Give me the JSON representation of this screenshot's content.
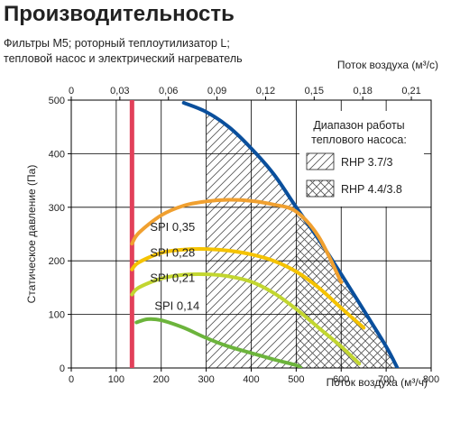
{
  "title": "Производительность",
  "subtitle_lines": [
    "Фильтры М5; роторный теплоутилизатор L;",
    "тепловой насос и электрический нагреватель"
  ],
  "colors": {
    "max_curve": "#0a4f9c",
    "limit_line": "#e2405a",
    "spi_035": "#f0a030",
    "spi_028": "#f5c300",
    "spi_021": "#c2d630",
    "spi_014": "#6cb43c",
    "grid": "#000000",
    "hatch": "#555555"
  },
  "chart_data": {
    "type": "line",
    "xlabel": "Поток воздуха (м³/ч)",
    "x2label": "Поток воздуха (м³/с)",
    "ylabel": "Статическое давление (Па)",
    "xlim": [
      0,
      800
    ],
    "ylim": [
      0,
      500
    ],
    "x_ticks": [
      0,
      100,
      200,
      300,
      400,
      500,
      600,
      700,
      800
    ],
    "y_ticks": [
      0,
      100,
      200,
      300,
      400,
      500
    ],
    "x2_ticks": [
      {
        "label": "0",
        "value": 0
      },
      {
        "label": "0,03",
        "value": 0.03
      },
      {
        "label": "0,06",
        "value": 0.06
      },
      {
        "label": "0,09",
        "value": 0.09
      },
      {
        "label": "0,12",
        "value": 0.12
      },
      {
        "label": "0,15",
        "value": 0.15
      },
      {
        "label": "0,18",
        "value": 0.18
      },
      {
        "label": "0,21",
        "value": 0.21
      }
    ],
    "grid": true,
    "min_airflow_line": 135,
    "series": [
      {
        "id": "max",
        "points": [
          [
            250,
            495
          ],
          [
            300,
            478
          ],
          [
            350,
            450
          ],
          [
            400,
            410
          ],
          [
            450,
            362
          ],
          [
            500,
            300
          ],
          [
            550,
            240
          ],
          [
            600,
            175
          ],
          [
            650,
            108
          ],
          [
            700,
            40
          ],
          [
            725,
            0
          ]
        ]
      },
      {
        "id": "spi035",
        "name": "SPI 0,35",
        "points": [
          [
            135,
            232
          ],
          [
            150,
            252
          ],
          [
            200,
            285
          ],
          [
            250,
            303
          ],
          [
            300,
            311
          ],
          [
            350,
            314
          ],
          [
            400,
            312
          ],
          [
            450,
            305
          ],
          [
            500,
            292
          ],
          [
            550,
            245
          ],
          [
            600,
            160
          ]
        ]
      },
      {
        "id": "spi028",
        "name": "SPI 0,28",
        "points": [
          [
            135,
            184
          ],
          [
            150,
            197
          ],
          [
            200,
            215
          ],
          [
            250,
            221
          ],
          [
            300,
            222
          ],
          [
            350,
            219
          ],
          [
            400,
            212
          ],
          [
            450,
            200
          ],
          [
            500,
            180
          ],
          [
            550,
            150
          ],
          [
            600,
            112
          ],
          [
            650,
            75
          ]
        ]
      },
      {
        "id": "spi021",
        "name": "SPI 0,21",
        "points": [
          [
            135,
            137
          ],
          [
            150,
            150
          ],
          [
            200,
            167
          ],
          [
            250,
            174
          ],
          [
            300,
            175
          ],
          [
            350,
            171
          ],
          [
            400,
            161
          ],
          [
            450,
            140
          ],
          [
            500,
            110
          ],
          [
            550,
            75
          ],
          [
            600,
            40
          ],
          [
            640,
            8
          ]
        ]
      },
      {
        "id": "spi014",
        "name": "SPI 0,14",
        "points": [
          [
            145,
            85
          ],
          [
            170,
            91
          ],
          [
            200,
            89
          ],
          [
            250,
            75
          ],
          [
            300,
            56
          ],
          [
            350,
            40
          ],
          [
            400,
            28
          ],
          [
            450,
            16
          ],
          [
            500,
            5
          ],
          [
            510,
            0
          ]
        ]
      }
    ],
    "regions": [
      {
        "name": "RHP 3.7/3",
        "hatch": "diag",
        "x_from": 300,
        "x_to": 500
      },
      {
        "name": "RHP 4.4/3.8",
        "hatch": "cross",
        "x_from": 300,
        "x_to": 725
      }
    ],
    "legend": {
      "title_lines": [
        "Диапазон работы",
        "теплового насоса:"
      ],
      "items": [
        "RHP 3.7/3",
        "RHP 4.4/3.8"
      ],
      "position": "top-right"
    }
  }
}
